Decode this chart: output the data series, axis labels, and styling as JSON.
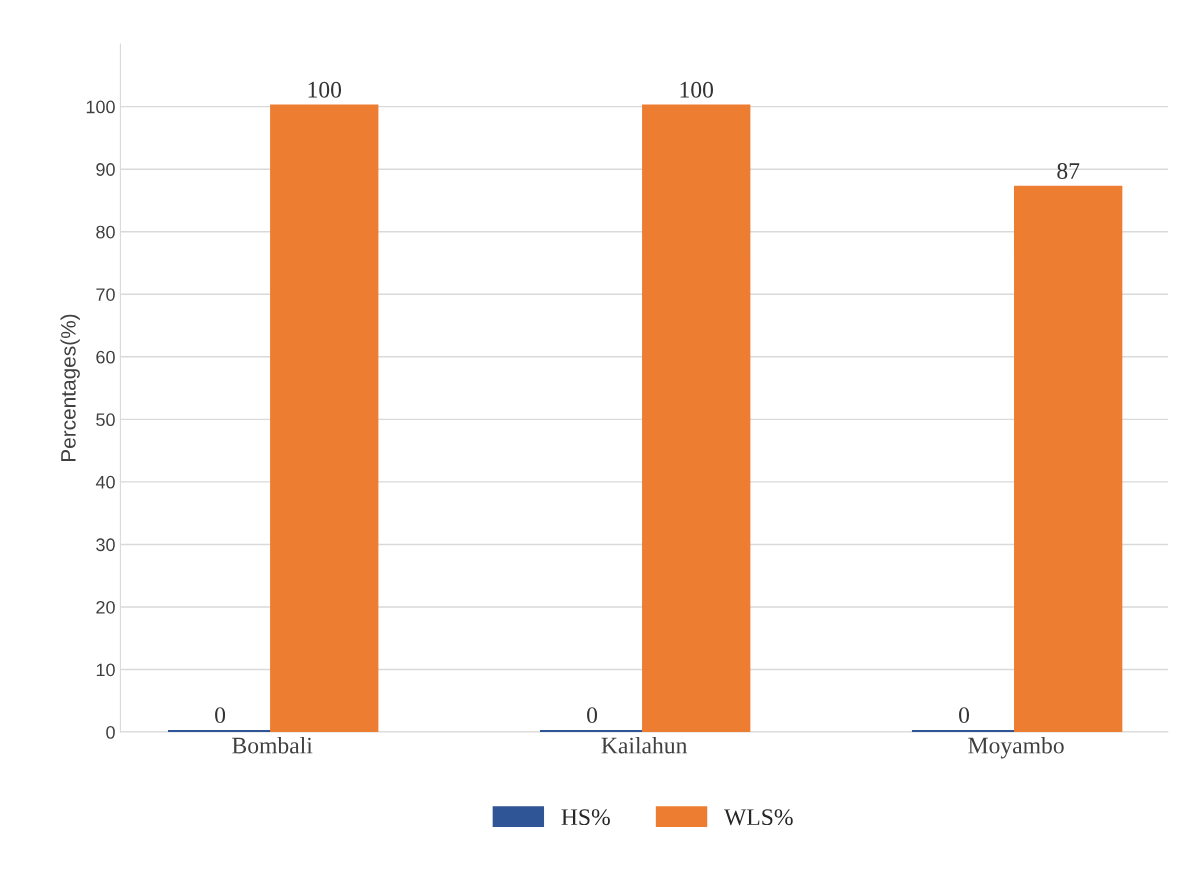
{
  "chart_data": {
    "type": "bar",
    "ylabel": "Percentages(%)",
    "categories": [
      "Bombali",
      "Kailahun",
      "Moyambo"
    ],
    "series": [
      {
        "name": "HS%",
        "color": "#2f5597",
        "values": [
          0,
          0,
          0
        ]
      },
      {
        "name": "WLS%",
        "color": "#ed7d31",
        "values": [
          100,
          100,
          87
        ]
      }
    ],
    "ylim": [
      0,
      110
    ],
    "yticks": [
      0,
      10,
      20,
      30,
      40,
      50,
      60,
      70,
      80,
      90,
      100
    ],
    "grid": "y",
    "legend": "bottom",
    "data_labels": true
  }
}
